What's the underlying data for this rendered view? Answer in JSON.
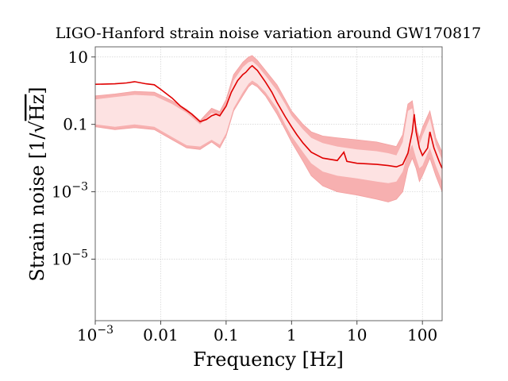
{
  "chart_data": {
    "type": "area",
    "title": "LIGO-Hanford strain noise variation around GW170817",
    "xlabel": "Frequency [Hz]",
    "ylabel_prefix": "Strain noise [1/",
    "ylabel_radicand": "Hz",
    "ylabel_suffix": "]",
    "xscale": "log",
    "yscale": "log",
    "xlim": [
      0.001,
      200
    ],
    "ylim": [
      1.5e-07,
      20
    ],
    "grid": true,
    "xticks": [
      {
        "value": 0.001,
        "base": "10",
        "exp": "−3"
      },
      {
        "value": 0.01,
        "label": "0.01"
      },
      {
        "value": 0.1,
        "label": "0.1"
      },
      {
        "value": 1,
        "label": "1"
      },
      {
        "value": 10,
        "label": "10"
      },
      {
        "value": 100,
        "label": "100"
      }
    ],
    "yticks": [
      {
        "value": 10,
        "label": "10"
      },
      {
        "value": 0.1,
        "label": "0.1"
      },
      {
        "value": 0.001,
        "base": "10",
        "exp": "−3"
      },
      {
        "value": 1e-05,
        "base": "10",
        "exp": "−5"
      }
    ],
    "series": [
      {
        "role": "outer-band",
        "color": "#f7b0b0",
        "x": [
          0.001,
          0.002,
          0.004,
          0.008,
          0.015,
          0.025,
          0.04,
          0.06,
          0.08,
          0.1,
          0.13,
          0.18,
          0.22,
          0.25,
          0.3,
          0.4,
          0.6,
          0.8,
          1,
          1.5,
          2,
          3,
          5,
          10,
          20,
          30,
          40,
          50,
          60,
          70,
          80,
          90,
          100,
          130,
          160,
          200
        ],
        "upper": [
          0.7,
          0.8,
          0.95,
          0.9,
          0.5,
          0.28,
          0.13,
          0.3,
          0.24,
          0.55,
          3,
          7,
          10,
          11,
          8,
          4,
          1.5,
          0.55,
          0.25,
          0.1,
          0.06,
          0.045,
          0.04,
          0.035,
          0.03,
          0.025,
          0.022,
          0.05,
          0.4,
          0.5,
          0.09,
          0.04,
          0.08,
          0.25,
          0.04,
          0.015
        ],
        "lower": [
          0.085,
          0.07,
          0.08,
          0.07,
          0.035,
          0.02,
          0.018,
          0.03,
          0.02,
          0.045,
          0.25,
          0.7,
          1.3,
          1.6,
          1.3,
          0.7,
          0.2,
          0.07,
          0.03,
          0.008,
          0.003,
          0.0015,
          0.001,
          0.0008,
          0.0006,
          0.0005,
          0.0006,
          0.001,
          0.005,
          0.01,
          0.005,
          0.002,
          0.003,
          0.01,
          0.003,
          0.001
        ]
      },
      {
        "role": "inner-band",
        "color": "#fde2e2",
        "x": [
          0.001,
          0.002,
          0.004,
          0.008,
          0.015,
          0.025,
          0.04,
          0.06,
          0.08,
          0.1,
          0.13,
          0.18,
          0.22,
          0.25,
          0.3,
          0.4,
          0.6,
          0.8,
          1,
          1.5,
          2,
          3,
          5,
          10,
          20,
          30,
          40,
          50,
          60,
          70,
          80,
          90,
          100,
          130,
          160,
          200
        ],
        "upper": [
          0.55,
          0.65,
          0.75,
          0.7,
          0.4,
          0.22,
          0.1,
          0.22,
          0.18,
          0.4,
          2,
          5,
          7,
          7.5,
          5.5,
          2.8,
          1,
          0.4,
          0.18,
          0.07,
          0.04,
          0.028,
          0.022,
          0.018,
          0.016,
          0.014,
          0.012,
          0.03,
          0.25,
          0.3,
          0.05,
          0.025,
          0.045,
          0.15,
          0.025,
          0.009
        ],
        "lower": [
          0.1,
          0.085,
          0.1,
          0.085,
          0.042,
          0.024,
          0.022,
          0.035,
          0.025,
          0.055,
          0.3,
          0.9,
          1.6,
          2,
          1.6,
          0.9,
          0.3,
          0.1,
          0.045,
          0.015,
          0.007,
          0.004,
          0.003,
          0.0025,
          0.002,
          0.0018,
          0.002,
          0.004,
          0.015,
          0.025,
          0.01,
          0.005,
          0.006,
          0.02,
          0.006,
          0.002
        ]
      },
      {
        "role": "median",
        "color": "#e00000",
        "x": [
          0.001,
          0.002,
          0.003,
          0.004,
          0.006,
          0.008,
          0.01,
          0.015,
          0.02,
          0.03,
          0.04,
          0.05,
          0.06,
          0.07,
          0.08,
          0.1,
          0.12,
          0.15,
          0.18,
          0.2,
          0.23,
          0.25,
          0.28,
          0.3,
          0.35,
          0.4,
          0.5,
          0.6,
          0.8,
          1,
          1.2,
          1.5,
          2,
          3,
          5,
          6.3,
          7,
          10,
          20,
          30,
          40,
          50,
          60,
          70,
          75,
          80,
          90,
          100,
          120,
          130,
          150,
          180,
          200
        ],
        "y": [
          1.55,
          1.6,
          1.7,
          1.85,
          1.6,
          1.5,
          1.1,
          0.6,
          0.35,
          0.2,
          0.12,
          0.14,
          0.18,
          0.2,
          0.18,
          0.35,
          0.9,
          2,
          3,
          3.5,
          4.8,
          5.5,
          4.5,
          4,
          2.6,
          1.8,
          0.9,
          0.45,
          0.17,
          0.085,
          0.05,
          0.028,
          0.015,
          0.01,
          0.0085,
          0.015,
          0.008,
          0.007,
          0.0065,
          0.006,
          0.0055,
          0.0065,
          0.014,
          0.06,
          0.2,
          0.06,
          0.02,
          0.012,
          0.02,
          0.06,
          0.02,
          0.008,
          0.005
        ]
      }
    ]
  }
}
